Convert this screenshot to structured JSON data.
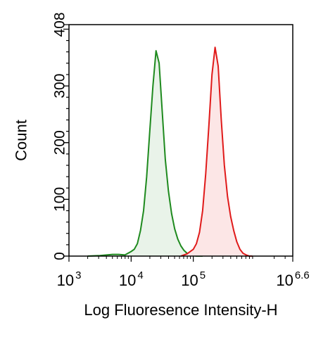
{
  "chart_data": {
    "type": "area",
    "xlabel": "Log Fluoresence Intensity-H",
    "ylabel": "Count",
    "x_scale": "log10",
    "xlim_exponent": [
      3,
      6.6
    ],
    "ylim": [
      0,
      408
    ],
    "x_ticks": [
      {
        "base": "10",
        "exp": "3",
        "value": 3
      },
      {
        "base": "10",
        "exp": "4",
        "value": 4
      },
      {
        "base": "10",
        "exp": "5",
        "value": 5
      },
      {
        "base": "10",
        "exp": "6.6",
        "value": 6.6
      }
    ],
    "y_ticks": [
      {
        "label": "0",
        "value": 0
      },
      {
        "label": "100",
        "value": 100
      },
      {
        "label": "200",
        "value": 200
      },
      {
        "label": "300",
        "value": 300
      },
      {
        "label": "408",
        "value": 408
      }
    ],
    "grid": false,
    "legend": "none",
    "series": [
      {
        "color": "#1e8a1e",
        "fill": "#e9f3e9",
        "x_log10": [
          3.3,
          3.5,
          3.7,
          3.8,
          3.9,
          4.0,
          4.05,
          4.1,
          4.15,
          4.2,
          4.25,
          4.3,
          4.35,
          4.4,
          4.45,
          4.5,
          4.55,
          4.6,
          4.65,
          4.7,
          4.75,
          4.8,
          4.85,
          4.9,
          4.95,
          5.0,
          5.05,
          5.1,
          5.15
        ],
        "y": [
          0,
          1,
          3,
          3,
          2,
          8,
          12,
          22,
          45,
          80,
          140,
          220,
          300,
          362,
          340,
          255,
          170,
          115,
          75,
          48,
          30,
          18,
          10,
          5,
          2,
          1,
          0,
          0,
          0
        ]
      },
      {
        "color": "#e01a1a",
        "fill": "#fce6e6",
        "x_log10": [
          4.8,
          4.9,
          5.0,
          5.05,
          5.1,
          5.15,
          5.2,
          5.25,
          5.3,
          5.35,
          5.4,
          5.45,
          5.5,
          5.55,
          5.6,
          5.65,
          5.7,
          5.75,
          5.8,
          5.85,
          5.9,
          5.95
        ],
        "y": [
          0,
          4,
          12,
          22,
          42,
          80,
          145,
          230,
          320,
          368,
          335,
          240,
          160,
          105,
          70,
          45,
          25,
          12,
          5,
          2,
          0,
          0
        ]
      }
    ]
  }
}
